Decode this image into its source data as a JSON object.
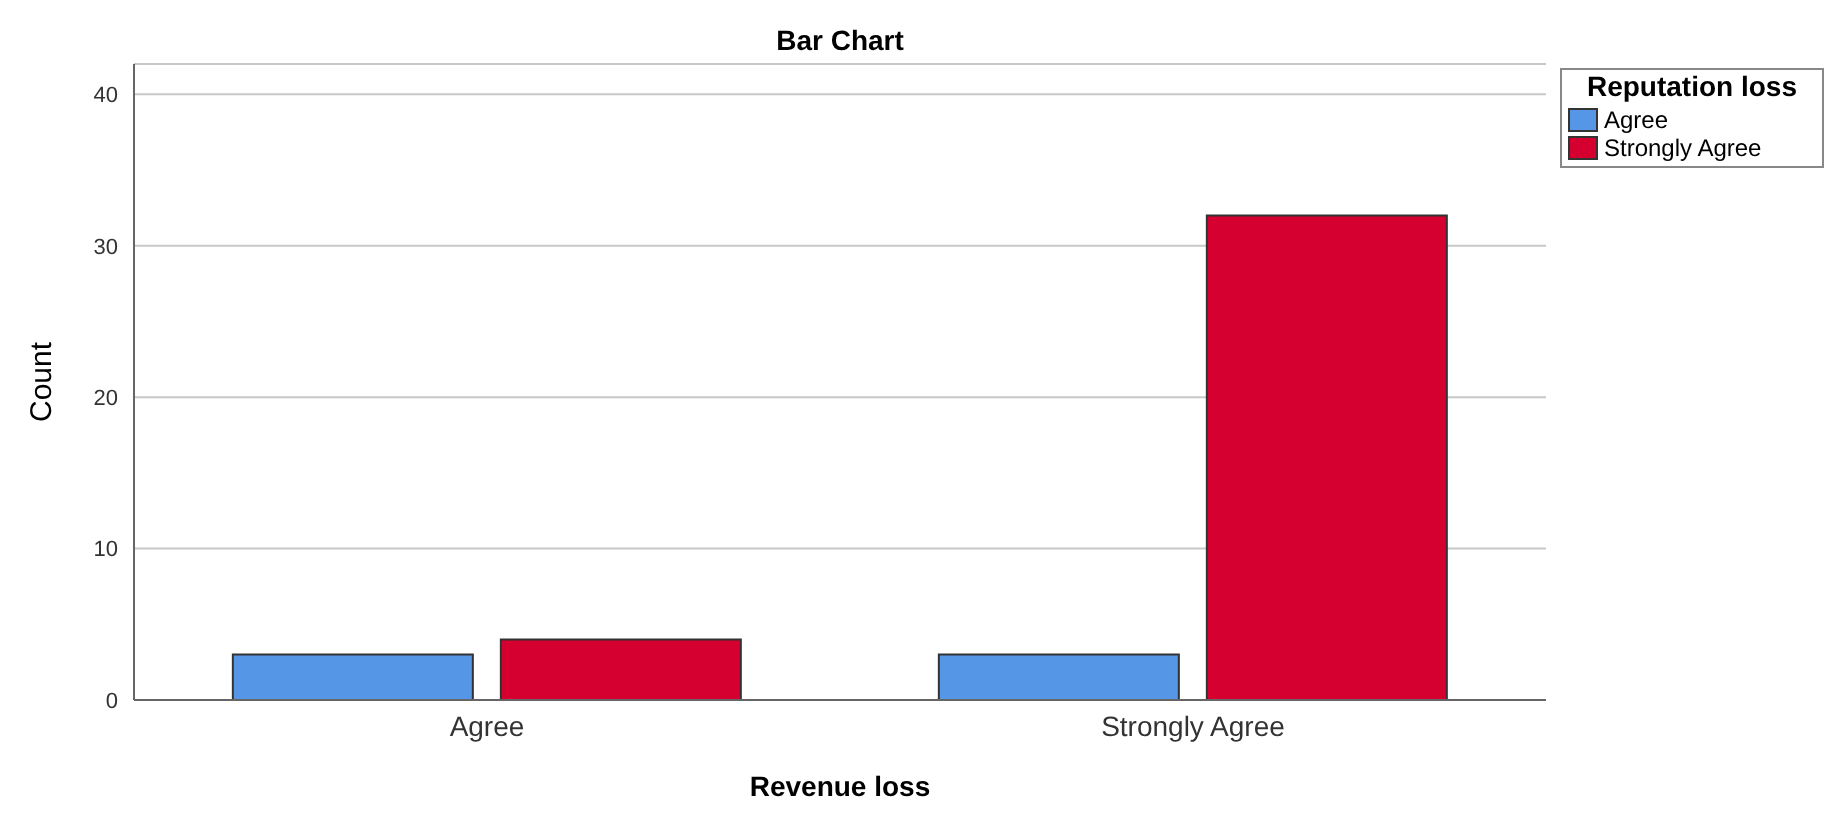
{
  "chart_data": {
    "type": "bar",
    "title": "Bar Chart",
    "xlabel": "Revenue loss",
    "ylabel": "Count",
    "legend_title": "Reputation loss",
    "categories": [
      "Agree",
      "Strongly Agree"
    ],
    "series": [
      {
        "name": "Agree",
        "color": "#5596e6",
        "values": [
          3,
          3
        ]
      },
      {
        "name": "Strongly Agree",
        "color": "#d5002f",
        "values": [
          4,
          32
        ]
      }
    ],
    "ylim": [
      0,
      42
    ],
    "yticks": [
      0,
      10,
      20,
      30,
      40
    ],
    "grid": "y",
    "legend": "top right"
  }
}
